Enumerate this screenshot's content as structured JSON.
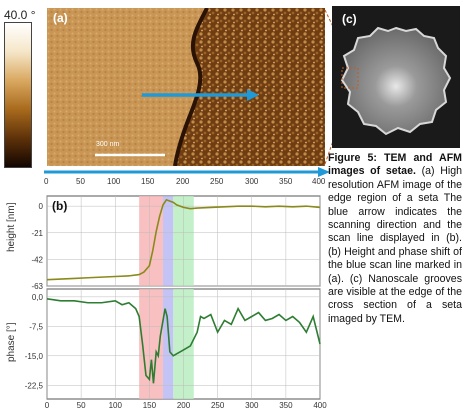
{
  "colorbar": {
    "top_label": "40.0 °"
  },
  "panel_a": {
    "label": "(a)",
    "scalebar": "300 nm",
    "axis_ticks": [
      "0",
      "50",
      "100",
      "150",
      "200",
      "250",
      "300",
      "350",
      "400"
    ]
  },
  "panel_b": {
    "label": "(b)",
    "height_axis_label": "height [nm]",
    "height_ticks": [
      "0",
      "-21",
      "-42",
      "-63"
    ],
    "phase_axis_label": "phase [°]",
    "phase_ticks": [
      "0,0",
      "-7,5",
      "-15,0",
      "-22,5"
    ],
    "x_ticks": [
      "0",
      "50",
      "100",
      "150",
      "200",
      "250",
      "300",
      "350",
      "400"
    ]
  },
  "panel_c": {
    "label": "(c)"
  },
  "caption": {
    "title": "Figure 5:  TEM and AFM images of setae.",
    "body": " (a) High resolution AFM image of the edge region of a seta The blue arrow indicates the scanning direction and the scan line displayed in (b). (b) Height and phase shift of the blue scan line marked in (a). (c) Nanoscale grooves are visible at the edge of the cross section of a seta imaged by TEM."
  },
  "colors": {
    "arrow": "#1f9ad6",
    "height_line": "#8a8a1a",
    "phase_line": "#2e7d32",
    "band_red": "#f7b5b5",
    "band_blue": "#b9b9f5",
    "band_green": "#b8ecc0"
  },
  "chart_data": [
    {
      "type": "line",
      "title": "",
      "xlabel": "",
      "ylabel": "height [nm]",
      "xlim": [
        0,
        400
      ],
      "ylim": [
        -63,
        8
      ],
      "grid": true,
      "bands": [
        [
          135,
          170
        ],
        [
          170,
          185
        ],
        [
          185,
          215
        ]
      ],
      "series": [
        {
          "x": [
            0,
            20,
            40,
            60,
            80,
            100,
            120,
            135,
            142,
            150,
            155,
            160,
            165,
            170,
            175,
            180,
            185,
            190,
            195,
            200,
            210,
            220,
            240,
            260,
            280,
            300,
            320,
            340,
            360,
            380,
            400
          ],
          "values": [
            -58,
            -57.5,
            -57,
            -56.5,
            -56,
            -55.5,
            -55,
            -54,
            -52,
            -47,
            -35,
            -20,
            -8,
            1,
            5,
            4,
            3,
            1,
            0,
            -1,
            -2,
            -1.5,
            -1,
            -0.5,
            0,
            0,
            -0.5,
            0,
            -0.5,
            0,
            -1
          ]
        }
      ]
    },
    {
      "type": "line",
      "title": "",
      "xlabel": "",
      "ylabel": "phase [°]",
      "xlim": [
        0,
        400
      ],
      "ylim": [
        -26,
        2
      ],
      "grid": true,
      "bands": [
        [
          135,
          170
        ],
        [
          170,
          185
        ],
        [
          185,
          215
        ]
      ],
      "series": [
        {
          "x": [
            0,
            20,
            40,
            60,
            80,
            100,
            110,
            120,
            130,
            135,
            140,
            145,
            150,
            153,
            156,
            160,
            163,
            166,
            170,
            173,
            176,
            180,
            185,
            190,
            200,
            210,
            220,
            225,
            230,
            240,
            250,
            260,
            270,
            280,
            290,
            300,
            310,
            320,
            330,
            340,
            350,
            360,
            370,
            380,
            390,
            400
          ],
          "values": [
            -0.5,
            -1,
            -1,
            -1.5,
            -1.5,
            -1,
            -2,
            -1.5,
            -3,
            -5,
            -12,
            -20,
            -21,
            -16,
            -22,
            -14,
            -15,
            -10,
            -6,
            -3,
            -5,
            -14,
            -15,
            -14.5,
            -13.5,
            -12.5,
            -9,
            -5,
            -5.5,
            -4.5,
            -9,
            -6,
            -7,
            -3,
            -6,
            -5,
            -4,
            -6,
            -5.5,
            -4.5,
            -6,
            -5,
            -6.5,
            -9,
            -5,
            -12
          ]
        }
      ]
    }
  ]
}
